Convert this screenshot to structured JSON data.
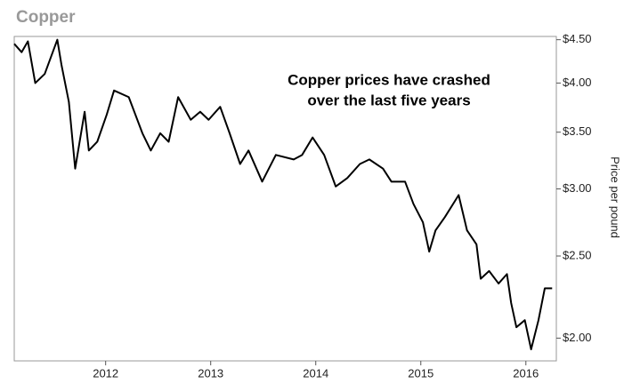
{
  "chart_data": {
    "type": "line",
    "title": "Copper",
    "annotation": [
      "Copper prices have crashed",
      "over the last five years"
    ],
    "y_label": "Price per pound",
    "log_scale_y": true,
    "grid": false,
    "x": [
      2011.13,
      2011.2,
      2011.26,
      2011.33,
      2011.42,
      2011.54,
      2011.58,
      2011.65,
      2011.71,
      2011.8,
      2011.84,
      2011.92,
      2012.01,
      2012.08,
      2012.22,
      2012.35,
      2012.43,
      2012.52,
      2012.6,
      2012.69,
      2012.81,
      2012.9,
      2012.98,
      2013.09,
      2013.18,
      2013.28,
      2013.36,
      2013.49,
      2013.62,
      2013.79,
      2013.87,
      2013.97,
      2014.08,
      2014.19,
      2014.3,
      2014.42,
      2014.51,
      2014.64,
      2014.72,
      2014.85,
      2014.93,
      2015.02,
      2015.08,
      2015.14,
      2015.23,
      2015.36,
      2015.44,
      2015.53,
      2015.57,
      2015.65,
      2015.74,
      2015.82,
      2015.86,
      2015.91,
      2015.99,
      2016.05,
      2016.12,
      2016.18,
      2016.25
    ],
    "series": [
      {
        "name": "Copper",
        "color": "#000000",
        "values": [
          4.45,
          4.35,
          4.48,
          4.0,
          4.1,
          4.5,
          4.2,
          3.8,
          3.17,
          3.7,
          3.33,
          3.41,
          3.67,
          3.92,
          3.85,
          3.49,
          3.33,
          3.49,
          3.41,
          3.85,
          3.62,
          3.7,
          3.62,
          3.75,
          3.49,
          3.21,
          3.33,
          3.06,
          3.29,
          3.25,
          3.29,
          3.45,
          3.29,
          3.02,
          3.09,
          3.21,
          3.25,
          3.17,
          3.06,
          3.06,
          2.88,
          2.74,
          2.53,
          2.68,
          2.78,
          2.95,
          2.68,
          2.58,
          2.35,
          2.4,
          2.32,
          2.38,
          2.2,
          2.06,
          2.1,
          1.94,
          2.1,
          2.29,
          2.29
        ]
      }
    ],
    "xlim": [
      2011.13,
      2016.29
    ],
    "xticks": [
      2012,
      2013,
      2014,
      2015,
      2016
    ],
    "ylim": [
      1.88,
      4.54
    ],
    "yticks": [
      {
        "value": 2.0,
        "label": "$2.00"
      },
      {
        "value": 2.5,
        "label": "$2.50"
      },
      {
        "value": 3.0,
        "label": "$3.00"
      },
      {
        "value": 3.5,
        "label": "$3.50"
      },
      {
        "value": 4.0,
        "label": "$4.00"
      },
      {
        "value": 4.5,
        "label": "$4.50"
      }
    ]
  }
}
